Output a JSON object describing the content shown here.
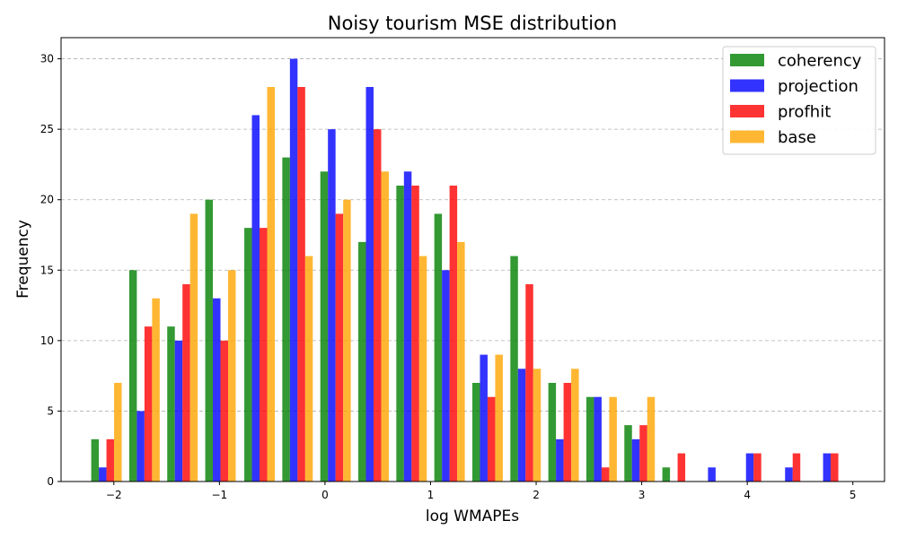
{
  "chart_data": {
    "type": "bar",
    "title": "Noisy tourism MSE distribution",
    "xlabel": "log WMAPEs",
    "ylabel": "Frequency",
    "xlim": [
      -2.5,
      5.3
    ],
    "ylim": [
      0,
      31.5
    ],
    "xticks": [
      -2,
      -1,
      0,
      1,
      2,
      3,
      4,
      5
    ],
    "xtick_labels": [
      "−2",
      "−1",
      "0",
      "1",
      "2",
      "3",
      "4",
      "5"
    ],
    "yticks": [
      0,
      5,
      10,
      15,
      20,
      25,
      30
    ],
    "ytick_labels": [
      "0",
      "5",
      "10",
      "15",
      "20",
      "25",
      "30"
    ],
    "grid": "y-dashed",
    "legend_position": "top-right",
    "bin_centers": [
      -2.07,
      -1.71,
      -1.35,
      -0.99,
      -0.62,
      -0.26,
      0.1,
      0.46,
      0.82,
      1.18,
      1.54,
      1.9,
      2.26,
      2.62,
      2.98,
      3.34,
      3.7,
      4.06,
      4.43,
      4.79
    ],
    "series": [
      {
        "name": "coherency",
        "color": "#008000",
        "values": [
          3,
          15,
          11,
          20,
          18,
          23,
          22,
          17,
          21,
          19,
          7,
          16,
          7,
          6,
          4,
          1,
          0,
          0,
          0,
          0
        ]
      },
      {
        "name": "projection",
        "color": "#0000ff",
        "values": [
          1,
          5,
          10,
          13,
          26,
          30,
          25,
          28,
          22,
          15,
          9,
          8,
          3,
          6,
          3,
          0,
          1,
          2,
          1,
          2
        ]
      },
      {
        "name": "profhit",
        "color": "#ff0000",
        "values": [
          3,
          11,
          14,
          10,
          18,
          28,
          19,
          25,
          21,
          21,
          6,
          14,
          7,
          1,
          4,
          2,
          0,
          2,
          2,
          2
        ]
      },
      {
        "name": "base",
        "color": "#ffa500",
        "values": [
          7,
          13,
          19,
          15,
          28,
          16,
          20,
          22,
          16,
          17,
          9,
          8,
          8,
          6,
          6,
          0,
          0,
          0,
          0,
          0
        ]
      }
    ]
  }
}
